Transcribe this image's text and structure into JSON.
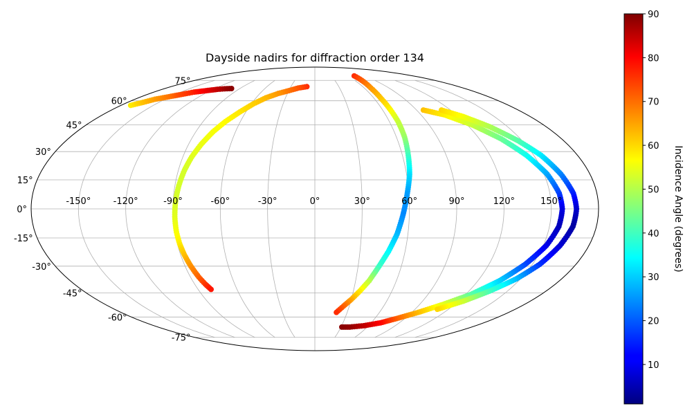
{
  "chart_data": {
    "type": "scatter",
    "projection": "mollweide",
    "title": "Dayside nadirs for diffraction order 134",
    "lon_ticks": [
      -150,
      -120,
      -90,
      -60,
      -30,
      0,
      30,
      60,
      90,
      120,
      150
    ],
    "lon_tick_labels": [
      "-150°",
      "-120°",
      "-90°",
      "-60°",
      "-30°",
      "0°",
      "30°",
      "60°",
      "90°",
      "120°",
      "150°"
    ],
    "lat_ticks": [
      -75,
      -60,
      -45,
      -30,
      -15,
      0,
      15,
      30,
      45,
      60,
      75
    ],
    "lat_tick_labels": [
      "-75°",
      "-60°",
      "-45°",
      "-30°",
      "-15°",
      "0°",
      "15°",
      "30°",
      "45°",
      "60°",
      "75°"
    ],
    "grid": true,
    "xlim": [
      -180,
      180
    ],
    "ylim": [
      -90,
      90
    ],
    "colorbar": {
      "label": "Incidence Angle (degrees)",
      "colormap": "jet",
      "range": [
        1,
        90
      ],
      "ticks": [
        10,
        20,
        30,
        40,
        50,
        60,
        70,
        80,
        90
      ],
      "tick_labels": [
        "10",
        "20",
        "30",
        "40",
        "50",
        "60",
        "70",
        "80",
        "90"
      ]
    },
    "tracks": [
      {
        "points": [
          [
            -171,
            57,
            58
          ],
          [
            -165,
            59,
            62
          ],
          [
            -160,
            61,
            65
          ],
          [
            -155,
            62,
            67
          ],
          [
            -150,
            63,
            69
          ],
          [
            -145,
            64,
            72
          ],
          [
            -140,
            65,
            74
          ],
          [
            -135,
            66,
            76
          ],
          [
            -130,
            66.5,
            78
          ],
          [
            -125,
            67,
            80
          ],
          [
            -120,
            67.5,
            82
          ],
          [
            -115,
            68,
            84
          ],
          [
            -110,
            68.3,
            86
          ],
          [
            -105,
            68.5,
            88
          ],
          [
            -100,
            68.6,
            89
          ]
        ]
      },
      {
        "points": [
          [
            -10,
            70,
            75
          ],
          [
            -20,
            69,
            72
          ],
          [
            -30,
            67,
            69
          ],
          [
            -40,
            65,
            66
          ],
          [
            -50,
            62,
            63
          ],
          [
            -58,
            58,
            61
          ],
          [
            -65,
            53,
            59
          ],
          [
            -72,
            47,
            57
          ],
          [
            -77,
            41,
            56
          ],
          [
            -81,
            34,
            55
          ],
          [
            -84,
            27,
            54
          ],
          [
            -86,
            20,
            53
          ],
          [
            -87.5,
            12,
            53
          ],
          [
            -88.5,
            4,
            53
          ],
          [
            -89,
            -4,
            54
          ],
          [
            -89,
            -12,
            56
          ],
          [
            -88.5,
            -18,
            58
          ],
          [
            -87.5,
            -24,
            62
          ],
          [
            -86,
            -30,
            66
          ],
          [
            -84,
            -36,
            70
          ],
          [
            -82,
            -40,
            74
          ],
          [
            -80,
            -43,
            77
          ]
        ]
      },
      {
        "points": [
          [
            72,
            79,
            75
          ],
          [
            70,
            74,
            70
          ],
          [
            68,
            69,
            66
          ],
          [
            67,
            62,
            62
          ],
          [
            67,
            55,
            58
          ],
          [
            67,
            47,
            52
          ],
          [
            66,
            38,
            48
          ],
          [
            64,
            28,
            40
          ],
          [
            62,
            18,
            32
          ],
          [
            59,
            8,
            26
          ],
          [
            56,
            -3,
            24
          ],
          [
            53,
            -13,
            28
          ],
          [
            49,
            -22,
            34
          ],
          [
            44,
            -31,
            40
          ],
          [
            40,
            -38,
            50
          ],
          [
            35,
            -44,
            58
          ],
          [
            30,
            -49,
            64
          ],
          [
            25,
            -53,
            70
          ],
          [
            20,
            -57,
            75
          ]
        ]
      },
      {
        "points": [
          [
            96,
            54,
            62
          ],
          [
            110,
            51,
            58
          ],
          [
            124,
            45,
            52
          ],
          [
            136,
            37,
            44
          ],
          [
            145,
            28,
            36
          ],
          [
            152,
            18,
            27
          ],
          [
            156,
            8,
            18
          ],
          [
            157,
            0,
            10
          ],
          [
            156,
            -9,
            6
          ],
          [
            152,
            -19,
            10
          ],
          [
            145,
            -29,
            18
          ],
          [
            136,
            -38,
            30
          ],
          [
            124,
            -46,
            42
          ],
          [
            110,
            -52,
            54
          ],
          [
            96,
            -57,
            62
          ],
          [
            82,
            -61,
            70
          ],
          [
            70,
            -64,
            78
          ],
          [
            55,
            -66,
            84
          ],
          [
            40,
            -67,
            88
          ],
          [
            31,
            -67,
            89
          ]
        ]
      },
      {
        "points": [
          [
            112,
            54,
            60
          ],
          [
            124,
            50,
            56
          ],
          [
            136,
            44,
            50
          ],
          [
            147,
            36,
            42
          ],
          [
            155,
            28,
            33
          ],
          [
            161,
            18,
            24
          ],
          [
            165,
            8,
            15
          ],
          [
            166,
            0,
            8
          ],
          [
            165,
            -9,
            4
          ],
          [
            161,
            -19,
            8
          ],
          [
            155,
            -29,
            16
          ],
          [
            147,
            -37,
            28
          ],
          [
            136,
            -44,
            40
          ],
          [
            124,
            -50,
            52
          ],
          [
            110,
            -55,
            60
          ]
        ]
      }
    ]
  }
}
